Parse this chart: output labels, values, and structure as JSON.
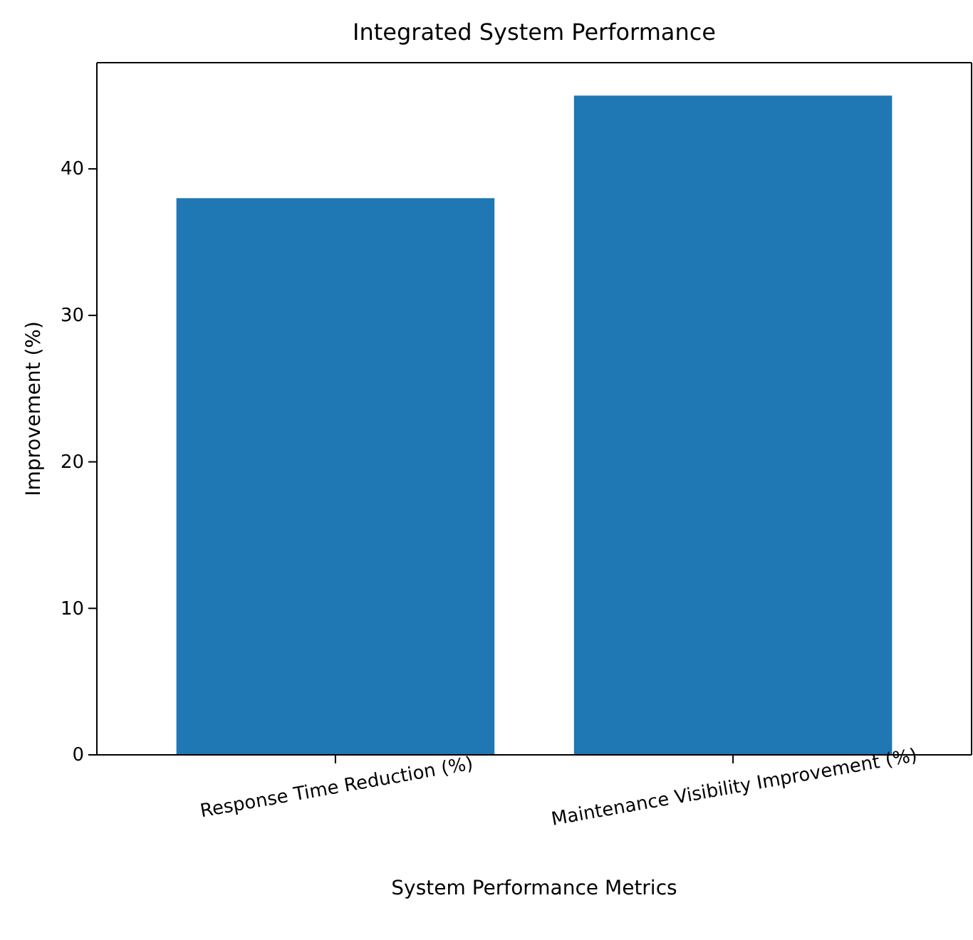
{
  "chart_data": {
    "type": "bar",
    "title": "Integrated System Performance",
    "xlabel": "System Performance Metrics",
    "ylabel": "Improvement (%)",
    "categories": [
      "Response Time Reduction (%)",
      "Maintenance Visibility Improvement (%)"
    ],
    "values": [
      38,
      45
    ],
    "color": "#1f77b4",
    "ylim": [
      0,
      47.25
    ],
    "yticks": [
      0,
      10,
      20,
      30,
      40
    ],
    "grid": false
  }
}
